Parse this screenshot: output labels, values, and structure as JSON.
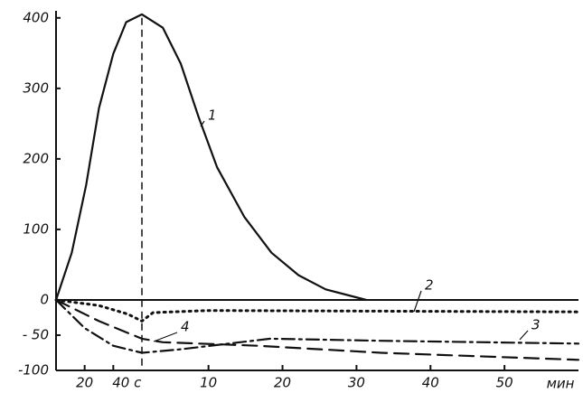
{
  "chart_data": {
    "type": "line",
    "x_label": "мин",
    "xlim": [
      0,
      3600
    ],
    "xbreak": 60,
    "xticks": [
      20,
      {
        "value": 40,
        "label": "40 c"
      },
      {
        "value": 600,
        "label": "10"
      },
      {
        "value": 1200,
        "label": "20"
      },
      {
        "value": 1800,
        "label": "30"
      },
      {
        "value": 2400,
        "label": "40"
      },
      {
        "value": 3000,
        "label": "50"
      }
    ],
    "ylim": [
      -100,
      410
    ],
    "yticks": [
      400,
      300,
      200,
      100,
      0,
      {
        "value": -50,
        "label": "- 50"
      },
      -100
    ],
    "vline": 60,
    "series": [
      {
        "name": "1",
        "color": "#111",
        "style": "solid",
        "x": [
          0,
          11,
          21,
          30,
          40,
          49,
          60,
          230,
          375,
          520,
          670,
          890,
          1110,
          1330,
          1550,
          1880
        ],
        "values": [
          0,
          67,
          163,
          272,
          349,
          394,
          405,
          386,
          335,
          259,
          188,
          118,
          67,
          35,
          15,
          0
        ]
      },
      {
        "name": "2",
        "color": "#111",
        "style": "dotted",
        "x": [
          0,
          30,
          50,
          60,
          150,
          600,
          3600
        ],
        "values": [
          0,
          -8,
          -20,
          -30,
          -18,
          -15,
          -17
        ]
      },
      {
        "name": "3",
        "color": "#111",
        "style": "dashdot",
        "x": [
          0,
          20,
          40,
          60,
          375,
          1100,
          2000,
          3600
        ],
        "values": [
          0,
          -40,
          -65,
          -75,
          -70,
          -55,
          -58,
          -62
        ]
      },
      {
        "name": "4",
        "color": "#111",
        "style": "dashed",
        "x": [
          0,
          30,
          60,
          230,
          1000,
          2000,
          3600
        ],
        "values": [
          0,
          -30,
          -55,
          -60,
          -65,
          -75,
          -85
        ]
      }
    ]
  }
}
